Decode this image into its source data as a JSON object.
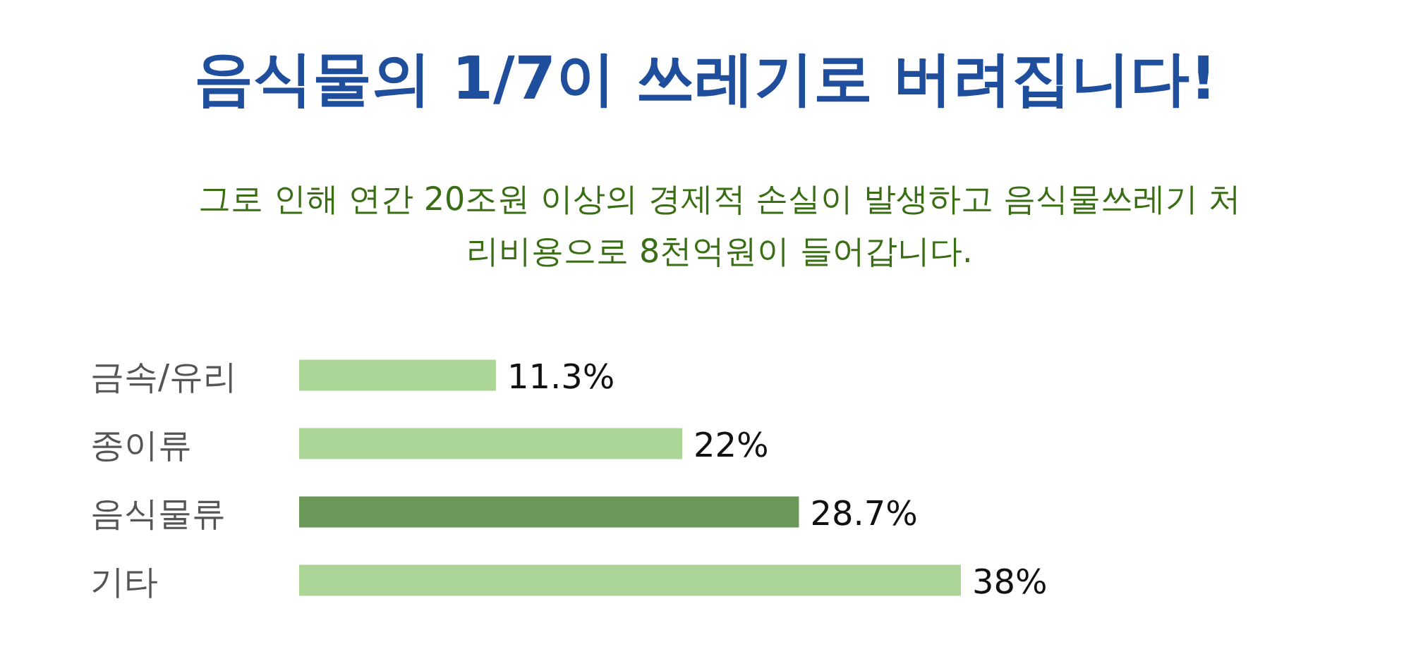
{
  "chart_data": {
    "type": "bar",
    "orientation": "horizontal",
    "title": "음식물의 1/7이 쓰레기로 버려집니다!",
    "subtitle": "그로 인해 연간 20조원 이상의 경제적 손실이 발생하고 음식물쓰레기 처리비용으로 8천억원이 들어갑니다.",
    "categories": [
      "금속/유리",
      "종이류",
      "음식물류",
      "기타"
    ],
    "values": [
      11.3,
      22,
      28.7,
      38
    ],
    "colors": [
      "#acd598",
      "#acd598",
      "#6b9858",
      "#acd598"
    ],
    "value_labels": [
      "11.3%",
      "22%",
      "28.7%",
      "38%"
    ]
  }
}
